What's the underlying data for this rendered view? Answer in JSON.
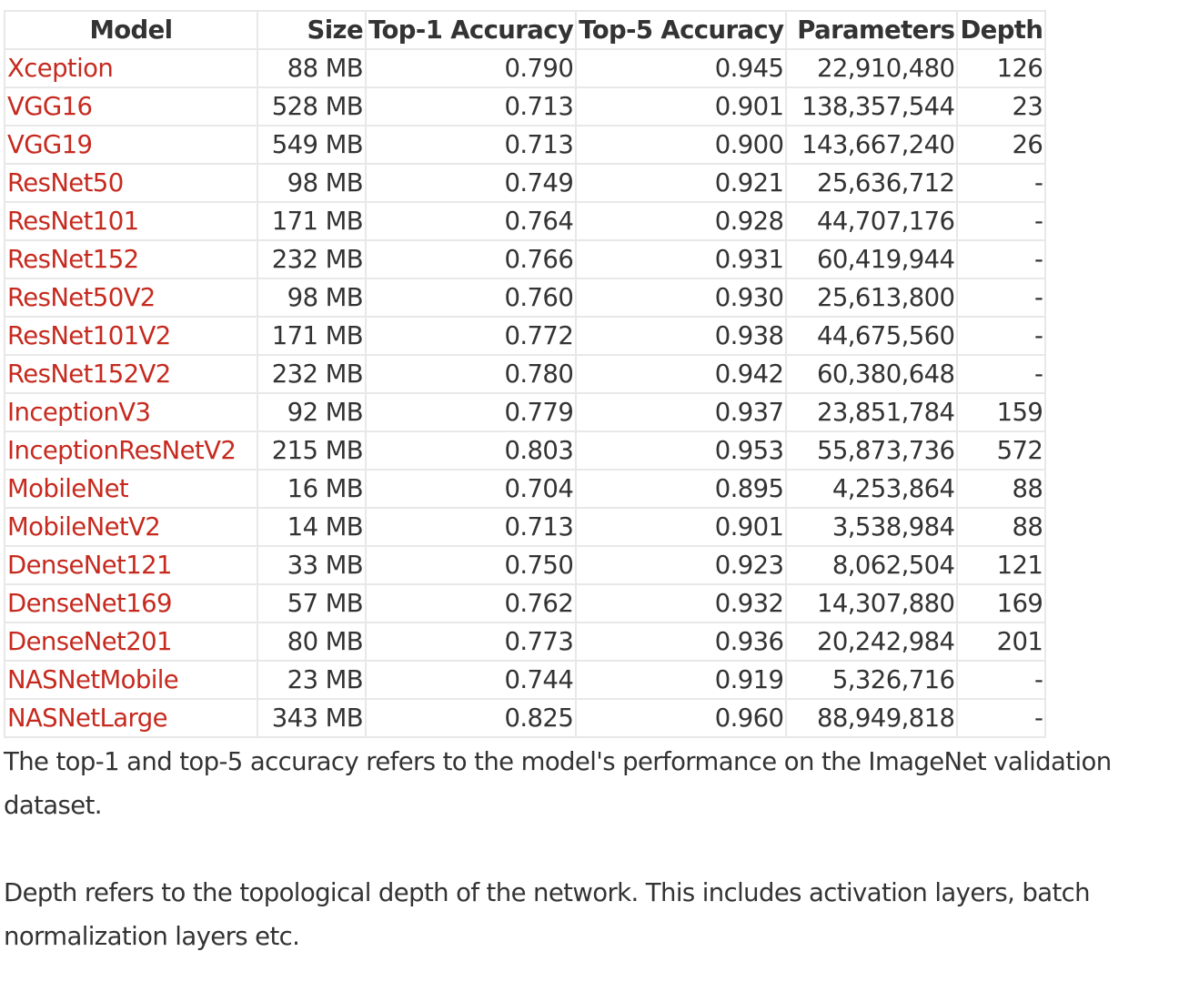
{
  "table": {
    "headers": {
      "model": "Model",
      "size": "Size",
      "top1": "Top-1 Accuracy",
      "top5": "Top-5 Accuracy",
      "parameters": "Parameters",
      "depth": "Depth"
    },
    "rows": [
      {
        "model": "Xception",
        "size": "88 MB",
        "top1": "0.790",
        "top5": "0.945",
        "parameters": "22,910,480",
        "depth": "126"
      },
      {
        "model": "VGG16",
        "size": "528 MB",
        "top1": "0.713",
        "top5": "0.901",
        "parameters": "138,357,544",
        "depth": "23"
      },
      {
        "model": "VGG19",
        "size": "549 MB",
        "top1": "0.713",
        "top5": "0.900",
        "parameters": "143,667,240",
        "depth": "26"
      },
      {
        "model": "ResNet50",
        "size": "98 MB",
        "top1": "0.749",
        "top5": "0.921",
        "parameters": "25,636,712",
        "depth": "-"
      },
      {
        "model": "ResNet101",
        "size": "171 MB",
        "top1": "0.764",
        "top5": "0.928",
        "parameters": "44,707,176",
        "depth": "-"
      },
      {
        "model": "ResNet152",
        "size": "232 MB",
        "top1": "0.766",
        "top5": "0.931",
        "parameters": "60,419,944",
        "depth": "-"
      },
      {
        "model": "ResNet50V2",
        "size": "98 MB",
        "top1": "0.760",
        "top5": "0.930",
        "parameters": "25,613,800",
        "depth": "-"
      },
      {
        "model": "ResNet101V2",
        "size": "171 MB",
        "top1": "0.772",
        "top5": "0.938",
        "parameters": "44,675,560",
        "depth": "-"
      },
      {
        "model": "ResNet152V2",
        "size": "232 MB",
        "top1": "0.780",
        "top5": "0.942",
        "parameters": "60,380,648",
        "depth": "-"
      },
      {
        "model": "InceptionV3",
        "size": "92 MB",
        "top1": "0.779",
        "top5": "0.937",
        "parameters": "23,851,784",
        "depth": "159"
      },
      {
        "model": "InceptionResNetV2",
        "size": "215 MB",
        "top1": "0.803",
        "top5": "0.953",
        "parameters": "55,873,736",
        "depth": "572"
      },
      {
        "model": "MobileNet",
        "size": "16 MB",
        "top1": "0.704",
        "top5": "0.895",
        "parameters": "4,253,864",
        "depth": "88"
      },
      {
        "model": "MobileNetV2",
        "size": "14 MB",
        "top1": "0.713",
        "top5": "0.901",
        "parameters": "3,538,984",
        "depth": "88"
      },
      {
        "model": "DenseNet121",
        "size": "33 MB",
        "top1": "0.750",
        "top5": "0.923",
        "parameters": "8,062,504",
        "depth": "121"
      },
      {
        "model": "DenseNet169",
        "size": "57 MB",
        "top1": "0.762",
        "top5": "0.932",
        "parameters": "14,307,880",
        "depth": "169"
      },
      {
        "model": "DenseNet201",
        "size": "80 MB",
        "top1": "0.773",
        "top5": "0.936",
        "parameters": "20,242,984",
        "depth": "201"
      },
      {
        "model": "NASNetMobile",
        "size": "23 MB",
        "top1": "0.744",
        "top5": "0.919",
        "parameters": "5,326,716",
        "depth": "-"
      },
      {
        "model": "NASNetLarge",
        "size": "343 MB",
        "top1": "0.825",
        "top5": "0.960",
        "parameters": "88,949,818",
        "depth": "-"
      }
    ]
  },
  "notes": [
    "The top-1 and top-5 accuracy refers to the model's performance on the ImageNet validation dataset.",
    "Depth refers to the topological depth of the network. This includes activation layers, batch normalization layers etc."
  ],
  "colors": {
    "link": "#c62a1f",
    "text": "#333333",
    "border": "#e8e8e8"
  }
}
